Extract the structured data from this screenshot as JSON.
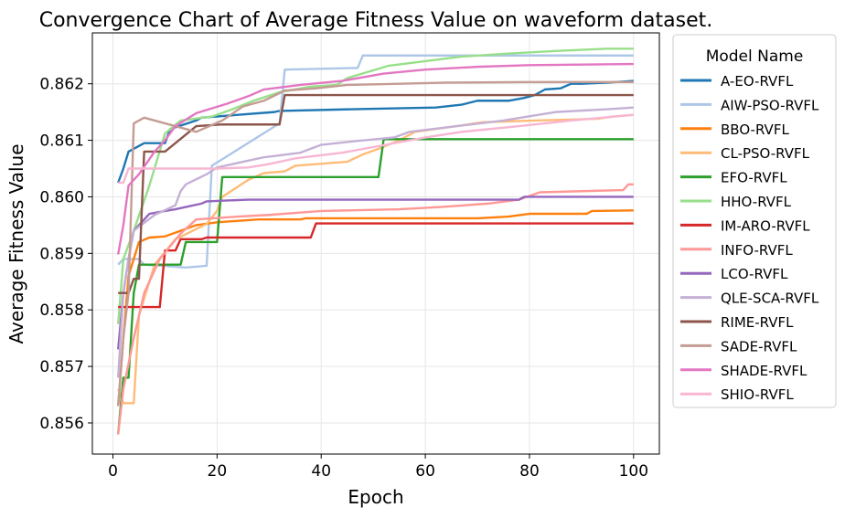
{
  "chart_data": {
    "type": "line",
    "title": "Convergence Chart of Average Fitness Value on waveform dataset.",
    "xlabel": "Epoch",
    "ylabel": "Average Fitness Value",
    "xlim": [
      -3.95,
      104.95
    ],
    "ylim": [
      0.85545,
      0.8629
    ],
    "xticks": [
      0,
      20,
      40,
      60,
      80,
      100
    ],
    "xtick_labels": [
      "0",
      "20",
      "40",
      "60",
      "80",
      "100"
    ],
    "yticks": [
      0.856,
      0.857,
      0.858,
      0.859,
      0.86,
      0.861,
      0.862
    ],
    "ytick_labels": [
      "0.856",
      "0.857",
      "0.858",
      "0.859",
      "0.860",
      "0.861",
      "0.862"
    ],
    "grid": true,
    "legend": {
      "title": "Model Name",
      "placement": "outside-right"
    },
    "series": [
      {
        "name": "A-EO-RVFL",
        "color": "#1f77b4",
        "points": [
          [
            1,
            0.86025
          ],
          [
            2,
            0.8605
          ],
          [
            3,
            0.8608
          ],
          [
            6,
            0.86095
          ],
          [
            10,
            0.86095
          ],
          [
            11,
            0.8612
          ],
          [
            16,
            0.86135
          ],
          [
            17,
            0.8614
          ],
          [
            24,
            0.86145
          ],
          [
            31,
            0.8615
          ],
          [
            32,
            0.86152
          ],
          [
            46,
            0.86155
          ],
          [
            62,
            0.86158
          ],
          [
            67,
            0.86163
          ],
          [
            70,
            0.8617
          ],
          [
            76,
            0.8617
          ],
          [
            79,
            0.86175
          ],
          [
            81,
            0.8618
          ],
          [
            83,
            0.8619
          ],
          [
            86,
            0.86192
          ],
          [
            88,
            0.862
          ],
          [
            90,
            0.862
          ],
          [
            95,
            0.86202
          ],
          [
            100,
            0.86205
          ]
        ]
      },
      {
        "name": "AIW-PSO-RVFL",
        "color": "#aec7e8",
        "points": [
          [
            1,
            0.8588
          ],
          [
            2,
            0.8589
          ],
          [
            5,
            0.8589
          ],
          [
            6,
            0.8588
          ],
          [
            14,
            0.85875
          ],
          [
            18,
            0.85878
          ],
          [
            19,
            0.86055
          ],
          [
            32,
            0.8613
          ],
          [
            33,
            0.86225
          ],
          [
            47,
            0.86228
          ],
          [
            48,
            0.8625
          ],
          [
            100,
            0.8625
          ]
        ]
      },
      {
        "name": "BBO-RVFL",
        "color": "#ff7f0e",
        "points": [
          [
            1,
            0.8563
          ],
          [
            2,
            0.8575
          ],
          [
            3,
            0.8586
          ],
          [
            4,
            0.8589
          ],
          [
            5,
            0.8592
          ],
          [
            7,
            0.85928
          ],
          [
            10,
            0.8593
          ],
          [
            16,
            0.8595
          ],
          [
            20,
            0.85955
          ],
          [
            28,
            0.8596
          ],
          [
            36,
            0.8596
          ],
          [
            37,
            0.85962
          ],
          [
            56,
            0.85962
          ],
          [
            70,
            0.85962
          ],
          [
            76,
            0.85965
          ],
          [
            80,
            0.8597
          ],
          [
            91,
            0.8597
          ],
          [
            92,
            0.85975
          ],
          [
            100,
            0.85976
          ]
        ]
      },
      {
        "name": "CL-PSO-RVFL",
        "color": "#ffbb78",
        "points": [
          [
            1,
            0.8566
          ],
          [
            2,
            0.85635
          ],
          [
            4,
            0.85635
          ],
          [
            5,
            0.8579
          ],
          [
            8,
            0.8588
          ],
          [
            12,
            0.85925
          ],
          [
            18,
            0.85952
          ],
          [
            20,
            0.85975
          ],
          [
            21,
            0.86
          ],
          [
            26,
            0.8603
          ],
          [
            29,
            0.86042
          ],
          [
            33,
            0.86045
          ],
          [
            35,
            0.86055
          ],
          [
            45,
            0.86062
          ],
          [
            48,
            0.86075
          ],
          [
            51,
            0.86085
          ],
          [
            55,
            0.861
          ],
          [
            58,
            0.86115
          ],
          [
            66,
            0.86125
          ],
          [
            71,
            0.86132
          ],
          [
            81,
            0.86135
          ],
          [
            93,
            0.86138
          ],
          [
            96,
            0.86142
          ],
          [
            100,
            0.86145
          ]
        ]
      },
      {
        "name": "EFO-RVFL",
        "color": "#2ca02c",
        "points": [
          [
            1,
            0.8558
          ],
          [
            2,
            0.8568
          ],
          [
            3,
            0.8568
          ],
          [
            4,
            0.8583
          ],
          [
            5,
            0.8588
          ],
          [
            13,
            0.8588
          ],
          [
            14,
            0.8592
          ],
          [
            20,
            0.8592
          ],
          [
            21,
            0.86035
          ],
          [
            51,
            0.86035
          ],
          [
            52,
            0.86102
          ],
          [
            100,
            0.86102
          ]
        ]
      },
      {
        "name": "HHO-RVFL",
        "color": "#98df8a",
        "points": [
          [
            1,
            0.85775
          ],
          [
            2,
            0.8589
          ],
          [
            4,
            0.8594
          ],
          [
            7,
            0.8602
          ],
          [
            10,
            0.86112
          ],
          [
            13,
            0.86135
          ],
          [
            19,
            0.86142
          ],
          [
            23,
            0.86155
          ],
          [
            27,
            0.8617
          ],
          [
            32,
            0.86185
          ],
          [
            38,
            0.86195
          ],
          [
            43,
            0.86198
          ],
          [
            45,
            0.8621
          ],
          [
            53,
            0.86232
          ],
          [
            60,
            0.8624
          ],
          [
            67,
            0.86248
          ],
          [
            75,
            0.86253
          ],
          [
            85,
            0.86258
          ],
          [
            95,
            0.86262
          ],
          [
            100,
            0.86262
          ]
        ]
      },
      {
        "name": "IM-ARO-RVFL",
        "color": "#d62728",
        "points": [
          [
            1,
            0.85805
          ],
          [
            9,
            0.85805
          ],
          [
            10,
            0.85905
          ],
          [
            12,
            0.85905
          ],
          [
            13,
            0.85925
          ],
          [
            17,
            0.85925
          ],
          [
            18,
            0.85928
          ],
          [
            38,
            0.85928
          ],
          [
            39,
            0.85953
          ],
          [
            100,
            0.85953
          ]
        ]
      },
      {
        "name": "INFO-RVFL",
        "color": "#ff9896",
        "points": [
          [
            1,
            0.8558
          ],
          [
            2,
            0.8566
          ],
          [
            4,
            0.8575
          ],
          [
            6,
            0.8583
          ],
          [
            9,
            0.8589
          ],
          [
            13,
            0.85935
          ],
          [
            16,
            0.8596
          ],
          [
            24,
            0.85965
          ],
          [
            30,
            0.85968
          ],
          [
            40,
            0.85975
          ],
          [
            55,
            0.85978
          ],
          [
            63,
            0.85982
          ],
          [
            72,
            0.85988
          ],
          [
            78,
            0.85995
          ],
          [
            82,
            0.86008
          ],
          [
            90,
            0.8601
          ],
          [
            98,
            0.86012
          ],
          [
            99,
            0.86022
          ],
          [
            100,
            0.86022
          ]
        ]
      },
      {
        "name": "LCO-RVFL",
        "color": "#9467bd",
        "points": [
          [
            1,
            0.8573
          ],
          [
            2,
            0.8583
          ],
          [
            3,
            0.8589
          ],
          [
            4,
            0.8594
          ],
          [
            7,
            0.8597
          ],
          [
            10,
            0.85975
          ],
          [
            12,
            0.85978
          ],
          [
            14,
            0.85982
          ],
          [
            17,
            0.85988
          ],
          [
            18,
            0.85992
          ],
          [
            26,
            0.85995
          ],
          [
            78,
            0.85995
          ],
          [
            79,
            0.86
          ],
          [
            100,
            0.86
          ]
        ]
      },
      {
        "name": "QLE-SCA-RVFL",
        "color": "#c5b0d5",
        "points": [
          [
            1,
            0.8568
          ],
          [
            2,
            0.8583
          ],
          [
            3,
            0.8589
          ],
          [
            4,
            0.8594
          ],
          [
            8,
            0.85968
          ],
          [
            12,
            0.85985
          ],
          [
            13,
            0.8601
          ],
          [
            14,
            0.86022
          ],
          [
            18,
            0.8604
          ],
          [
            20,
            0.86052
          ],
          [
            24,
            0.8606
          ],
          [
            29,
            0.8607
          ],
          [
            36,
            0.86078
          ],
          [
            40,
            0.86092
          ],
          [
            46,
            0.86098
          ],
          [
            54,
            0.86105
          ],
          [
            57,
            0.86115
          ],
          [
            66,
            0.86125
          ],
          [
            75,
            0.86135
          ],
          [
            85,
            0.8615
          ],
          [
            95,
            0.86155
          ],
          [
            100,
            0.86158
          ]
        ]
      },
      {
        "name": "RIME-RVFL",
        "color": "#8c564b",
        "points": [
          [
            1,
            0.8583
          ],
          [
            3,
            0.8583
          ],
          [
            4,
            0.85855
          ],
          [
            5,
            0.85855
          ],
          [
            6,
            0.8608
          ],
          [
            10,
            0.8608
          ],
          [
            16,
            0.86125
          ],
          [
            21,
            0.86128
          ],
          [
            32,
            0.86128
          ],
          [
            33,
            0.8618
          ],
          [
            100,
            0.8618
          ]
        ]
      },
      {
        "name": "SADE-RVFL",
        "color": "#c49c94",
        "points": [
          [
            1,
            0.8563
          ],
          [
            2,
            0.8575
          ],
          [
            3,
            0.8583
          ],
          [
            4,
            0.8613
          ],
          [
            6,
            0.8614
          ],
          [
            16,
            0.86115
          ],
          [
            21,
            0.86135
          ],
          [
            25,
            0.8616
          ],
          [
            29,
            0.8617
          ],
          [
            33,
            0.86188
          ],
          [
            39,
            0.86192
          ],
          [
            45,
            0.86198
          ],
          [
            55,
            0.862
          ],
          [
            64,
            0.86202
          ],
          [
            80,
            0.86203
          ],
          [
            100,
            0.86203
          ]
        ]
      },
      {
        "name": "SHADE-RVFL",
        "color": "#e377c2",
        "points": [
          [
            1,
            0.85898
          ],
          [
            2,
            0.8595
          ],
          [
            3,
            0.8602
          ],
          [
            5,
            0.8604
          ],
          [
            8,
            0.8608
          ],
          [
            10,
            0.861
          ],
          [
            12,
            0.86125
          ],
          [
            16,
            0.86148
          ],
          [
            22,
            0.86165
          ],
          [
            26,
            0.86178
          ],
          [
            29,
            0.8619
          ],
          [
            36,
            0.86198
          ],
          [
            44,
            0.86205
          ],
          [
            52,
            0.86218
          ],
          [
            60,
            0.86225
          ],
          [
            70,
            0.8623
          ],
          [
            80,
            0.86233
          ],
          [
            100,
            0.86235
          ]
        ]
      },
      {
        "name": "SHIO-RVFL",
        "color": "#f7b6d2",
        "points": [
          [
            1,
            0.86025
          ],
          [
            2,
            0.86025
          ],
          [
            3,
            0.8605
          ],
          [
            20,
            0.8605
          ],
          [
            26,
            0.86052
          ],
          [
            30,
            0.86058
          ],
          [
            35,
            0.86068
          ],
          [
            44,
            0.86078
          ],
          [
            50,
            0.86088
          ],
          [
            60,
            0.86105
          ],
          [
            67,
            0.86115
          ],
          [
            78,
            0.86125
          ],
          [
            88,
            0.86135
          ],
          [
            100,
            0.86145
          ]
        ]
      }
    ]
  }
}
